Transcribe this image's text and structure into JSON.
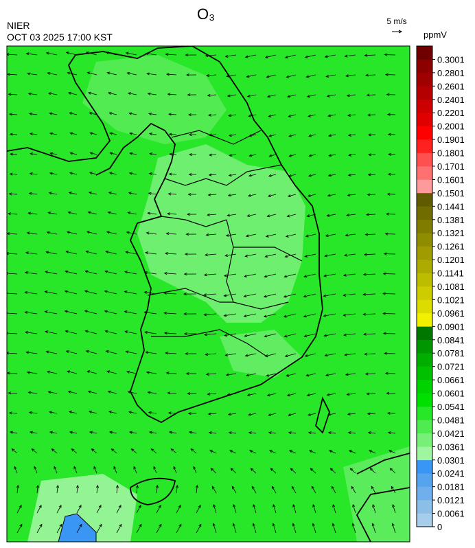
{
  "header": {
    "title": "O₃",
    "agency": "NIER",
    "datetime": "OCT 03 2025 17:00 KST"
  },
  "wind_legend": {
    "label": "5 m/s"
  },
  "colorbar": {
    "unit": "ppmV",
    "levels": [
      0,
      0.0061,
      0.0121,
      0.0181,
      0.0241,
      0.0301,
      0.0361,
      0.0421,
      0.0481,
      0.0541,
      0.0601,
      0.0661,
      0.0721,
      0.0781,
      0.0841,
      0.0901,
      0.0961,
      0.1021,
      0.1081,
      0.1141,
      0.1201,
      0.1261,
      0.1321,
      0.1381,
      0.1441,
      0.1501,
      0.1601,
      0.1701,
      0.1801,
      0.1901,
      0.2001,
      0.2201,
      0.2401,
      0.2601,
      0.2801,
      0.3001
    ],
    "colors": [
      "#a6cdea",
      "#8cbfe8",
      "#6fb0ec",
      "#56a4ee",
      "#3a96f4",
      "#a0f5a0",
      "#78f078",
      "#50eb50",
      "#28e628",
      "#00e000",
      "#00d200",
      "#00c000",
      "#00ae00",
      "#009600",
      "#007800",
      "#f0f000",
      "#dcdc00",
      "#cccc00",
      "#bcbc00",
      "#acac00",
      "#a09c00",
      "#908c00",
      "#807c00",
      "#706c00",
      "#605a00",
      "#ff9a9a",
      "#ff7070",
      "#ff5050",
      "#ff2020",
      "#ff0000",
      "#e00000",
      "#cc0000",
      "#b40000",
      "#a00000",
      "#8c0000",
      "#700000"
    ]
  }
}
